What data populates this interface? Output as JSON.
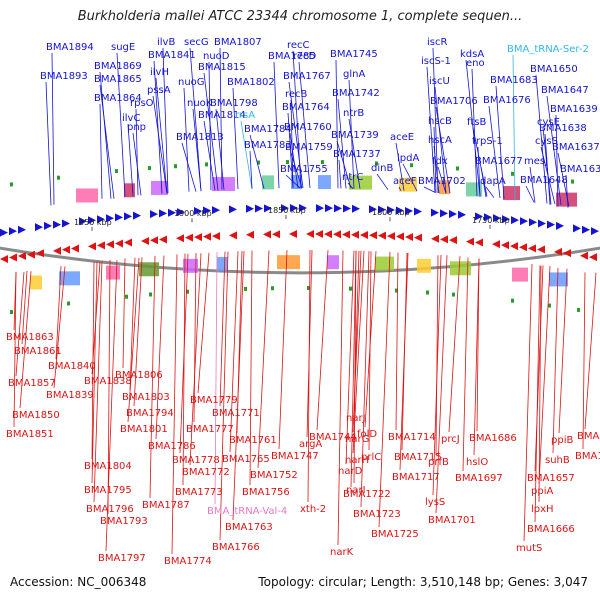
{
  "title": "Burkholderia mallei ATCC 23344 chromosome 1, complete sequen...",
  "footer": {
    "accession": "Accession: NC_006348",
    "info": "Topology: circular; Length: 3,510,148 bp; Genes: 3,047"
  },
  "colors": {
    "forward": "#1414d2",
    "reverse": "#dc1414",
    "trna": "#33b5e5",
    "trna_reverse": "#e87ac0",
    "backbone": "#8a8a8a"
  },
  "ticks": [
    "1950 kbp",
    "1900 kbp",
    "1850 kbp",
    "1800 kbp",
    "1750 kbp"
  ],
  "forward_labels": [
    "BMA1894",
    "BMA1893",
    "sugE",
    "BMA1869",
    "BMA1865",
    "BMA1864",
    "ilvB",
    "BMA1841",
    "ilvH",
    "pssA",
    "rpsO",
    "ilvC",
    "pnp",
    "secG",
    "BMA1815",
    "nuoD",
    "nuoG",
    "nuoK",
    "BMA1814",
    "BMA1813",
    "BMA1807",
    "BMA1802",
    "BMA1798",
    "rrsA",
    "BMA1784",
    "BMA1783",
    "BMA1785",
    "recC",
    "recD",
    "BMA1767",
    "recB",
    "BMA1764",
    "BMA1760",
    "BMA1759",
    "BMA1755",
    "BMA1745",
    "glnA",
    "BMA1742",
    "ntrB",
    "BMA1739",
    "BMA1737",
    "ntrC",
    "aceE",
    "dinB",
    "lpdA",
    "aceF",
    "iscR",
    "iscS-1",
    "iscU",
    "BMA1706",
    "hscB",
    "hscA",
    "fdx",
    "BMA1702",
    "kdsA",
    "BMA_tRNA-Ser-2",
    "eno",
    "BMA1683",
    "BMA1676",
    "ftsB",
    "trpS-1",
    "BMA1677",
    "dapA",
    "BMA1650",
    "BMA1647",
    "BMA1639",
    "BMA1638",
    "cysE",
    "BMA1637",
    "cysS",
    "BMA1636",
    "mesJ",
    "BMA1648"
  ],
  "reverse_labels": [
    "BMA1863",
    "BMA1861",
    "BMA1857",
    "BMA1850",
    "BMA1851",
    "BMA1840",
    "BMA1838",
    "BMA1839",
    "BMA1806",
    "BMA1803",
    "BMA1794",
    "BMA1801",
    "BMA1804",
    "BMA1795",
    "BMA1796",
    "BMA1797",
    "BMA1793",
    "BMA1787",
    "BMA1786",
    "BMA1779",
    "BMA1777",
    "BMA1771",
    "BMA1778",
    "BMA1772",
    "BMA1773",
    "BMA1774",
    "BMA1766",
    "BMA1763",
    "BMA_tRNA-Val-4",
    "BMA1761",
    "BMA1765",
    "BMA1752",
    "BMA1756",
    "argA",
    "BMA1747",
    "BMA1744",
    "xth-2",
    "narJ",
    "narG",
    "narH",
    "narI",
    "narK",
    "narD",
    "folD",
    "prlC",
    "BMA1722",
    "BMA1723",
    "BMA1725",
    "BMA1714",
    "BMA1715",
    "BMA1717",
    "prcJ",
    "prfB",
    "BMA1697",
    "lysS",
    "BMA1701",
    "BMA1686",
    "hslO",
    "ppiB",
    "BMA1644",
    "BMA1645",
    "suhB",
    "BMA1657",
    "ppiA",
    "lpxH",
    "BMA1666",
    "mutS"
  ]
}
